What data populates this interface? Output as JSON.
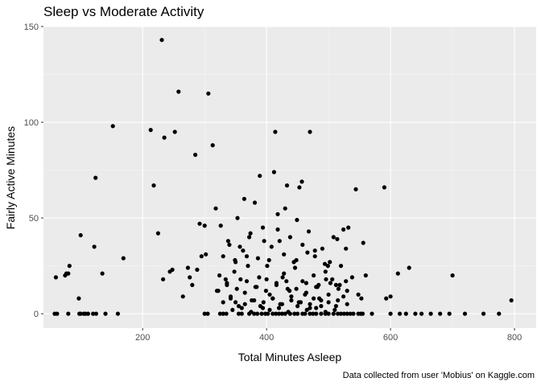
{
  "chart_data": {
    "type": "scatter",
    "title": "Sleep vs Moderate Activity",
    "xlabel": "Total Minutes Asleep",
    "ylabel": "Fairly Active Minutes",
    "caption": "Data collected from user 'Mobius' on Kaggle.com",
    "xlim": [
      40,
      835
    ],
    "ylim": [
      -7.5,
      150
    ],
    "xticks": [
      200,
      400,
      600,
      800
    ],
    "yticks": [
      0,
      50,
      100,
      150
    ],
    "grid": true,
    "legend": "none",
    "colors": {
      "panel": "#ebebeb",
      "grid_major": "#ffffff",
      "grid_minor": "#f5f5f5",
      "point": "#000000",
      "text": "#000000",
      "tick_text": "#4d4d4d"
    },
    "series": [
      {
        "x": [
          58,
          62,
          80,
          98,
          100,
          105,
          108,
          112,
          120,
          125,
          140,
          160,
          300,
          305,
          325,
          330,
          335,
          355,
          360,
          372,
          380,
          385,
          392,
          398,
          402,
          410,
          415,
          420,
          425,
          430,
          438,
          445,
          450,
          458,
          462,
          470,
          475,
          480,
          488,
          495,
          500,
          508,
          515,
          520,
          525,
          530,
          535,
          540,
          548,
          552,
          555,
          570,
          600,
          615,
          625,
          640,
          650,
          665,
          680,
          695,
          720,
          750,
          775,
          60,
          75,
          77,
          80,
          82,
          97,
          100,
          122,
          124,
          135,
          152,
          169,
          213,
          218,
          225,
          231,
          233,
          235,
          244,
          248,
          252,
          258,
          265,
          273,
          276,
          280,
          285,
          288,
          292,
          295,
          300,
          302,
          306,
          313,
          318,
          322,
          326,
          334,
          338,
          342,
          349,
          353,
          357,
          364,
          368,
          372,
          381,
          389,
          394,
          401,
          405,
          412,
          414,
          418,
          421,
          426,
          430,
          433,
          437,
          444,
          449,
          453,
          457,
          462,
          466,
          470,
          476,
          478,
          484,
          488,
          495,
          499,
          503,
          508,
          516,
          520,
          524,
          528,
          532,
          538,
          544,
          548,
          553,
          556,
          560,
          590,
          593,
          600,
          612,
          630,
          700,
          795,
          320,
          324,
          330,
          336,
          342,
          348,
          355,
          358,
          365,
          370,
          376,
          382,
          388,
          394,
          399,
          404,
          410,
          416,
          422,
          428,
          434,
          440,
          446,
          452,
          458,
          464,
          470,
          476,
          482,
          488,
          494,
          500,
          506,
          512,
          518,
          524,
          530,
          330,
          340,
          350,
          362,
          374,
          386,
          396,
          408,
          418,
          428,
          438,
          448,
          458,
          468,
          478,
          490,
          502,
          514,
          345,
          360,
          375,
          390,
          405,
          420,
          435,
          450,
          465,
          480,
          495,
          510,
          336,
          352,
          368,
          384,
          400,
          416,
          432,
          448,
          464,
          480,
          496,
          512,
          528,
          350,
          365,
          380,
          395,
          410,
          425,
          440,
          455,
          470,
          485,
          500,
          515,
          530
        ],
        "y": [
          0,
          0,
          0,
          0,
          0,
          0,
          0,
          0,
          0,
          0,
          0,
          0,
          0,
          0,
          0,
          0,
          0,
          0,
          0,
          0,
          0,
          0,
          0,
          0,
          0,
          0,
          0,
          0,
          0,
          0,
          0,
          0,
          0,
          0,
          0,
          0,
          0,
          0,
          0,
          0,
          0,
          0,
          0,
          0,
          0,
          0,
          0,
          0,
          0,
          0,
          0,
          0,
          0,
          0,
          0,
          0,
          0,
          0,
          0,
          0,
          0,
          0,
          0,
          19,
          20,
          21,
          21,
          25,
          8,
          41,
          35,
          71,
          21,
          98,
          29,
          96,
          67,
          42,
          143,
          18,
          92,
          22,
          23,
          95,
          116,
          9,
          24,
          19,
          15,
          83,
          23,
          47,
          30,
          46,
          31,
          115,
          88,
          55,
          12,
          46,
          18,
          38,
          8,
          28,
          50,
          35,
          60,
          30,
          40,
          58,
          72,
          45,
          25,
          10,
          74,
          95,
          52,
          38,
          19,
          55,
          67,
          12,
          27,
          49,
          66,
          69,
          10,
          32,
          95,
          8,
          33,
          15,
          4,
          22,
          25,
          16,
          40,
          13,
          25,
          44,
          34,
          45,
          19,
          65,
          10,
          8,
          37,
          20,
          66,
          8,
          9,
          21,
          24,
          20,
          7,
          12,
          20,
          6,
          15,
          9,
          22,
          4,
          18,
          11,
          25,
          7,
          14,
          19,
          3,
          12,
          28,
          8,
          16,
          5,
          21,
          13,
          9,
          24,
          6,
          17,
          11,
          3,
          20,
          14,
          7,
          26,
          10,
          18,
          4,
          15,
          9,
          12,
          30,
          36,
          27,
          33,
          42,
          29,
          38,
          35,
          44,
          31,
          40,
          28,
          36,
          43,
          30,
          34,
          27,
          39,
          2,
          3,
          1,
          4,
          2,
          3,
          1,
          4,
          2,
          3,
          1,
          2,
          16,
          13,
          17,
          14,
          18,
          15,
          17,
          13,
          16,
          14,
          18,
          15,
          17,
          6,
          5,
          7,
          6,
          8,
          5,
          7,
          6,
          5,
          8,
          6,
          7,
          5
        ]
      }
    ]
  }
}
